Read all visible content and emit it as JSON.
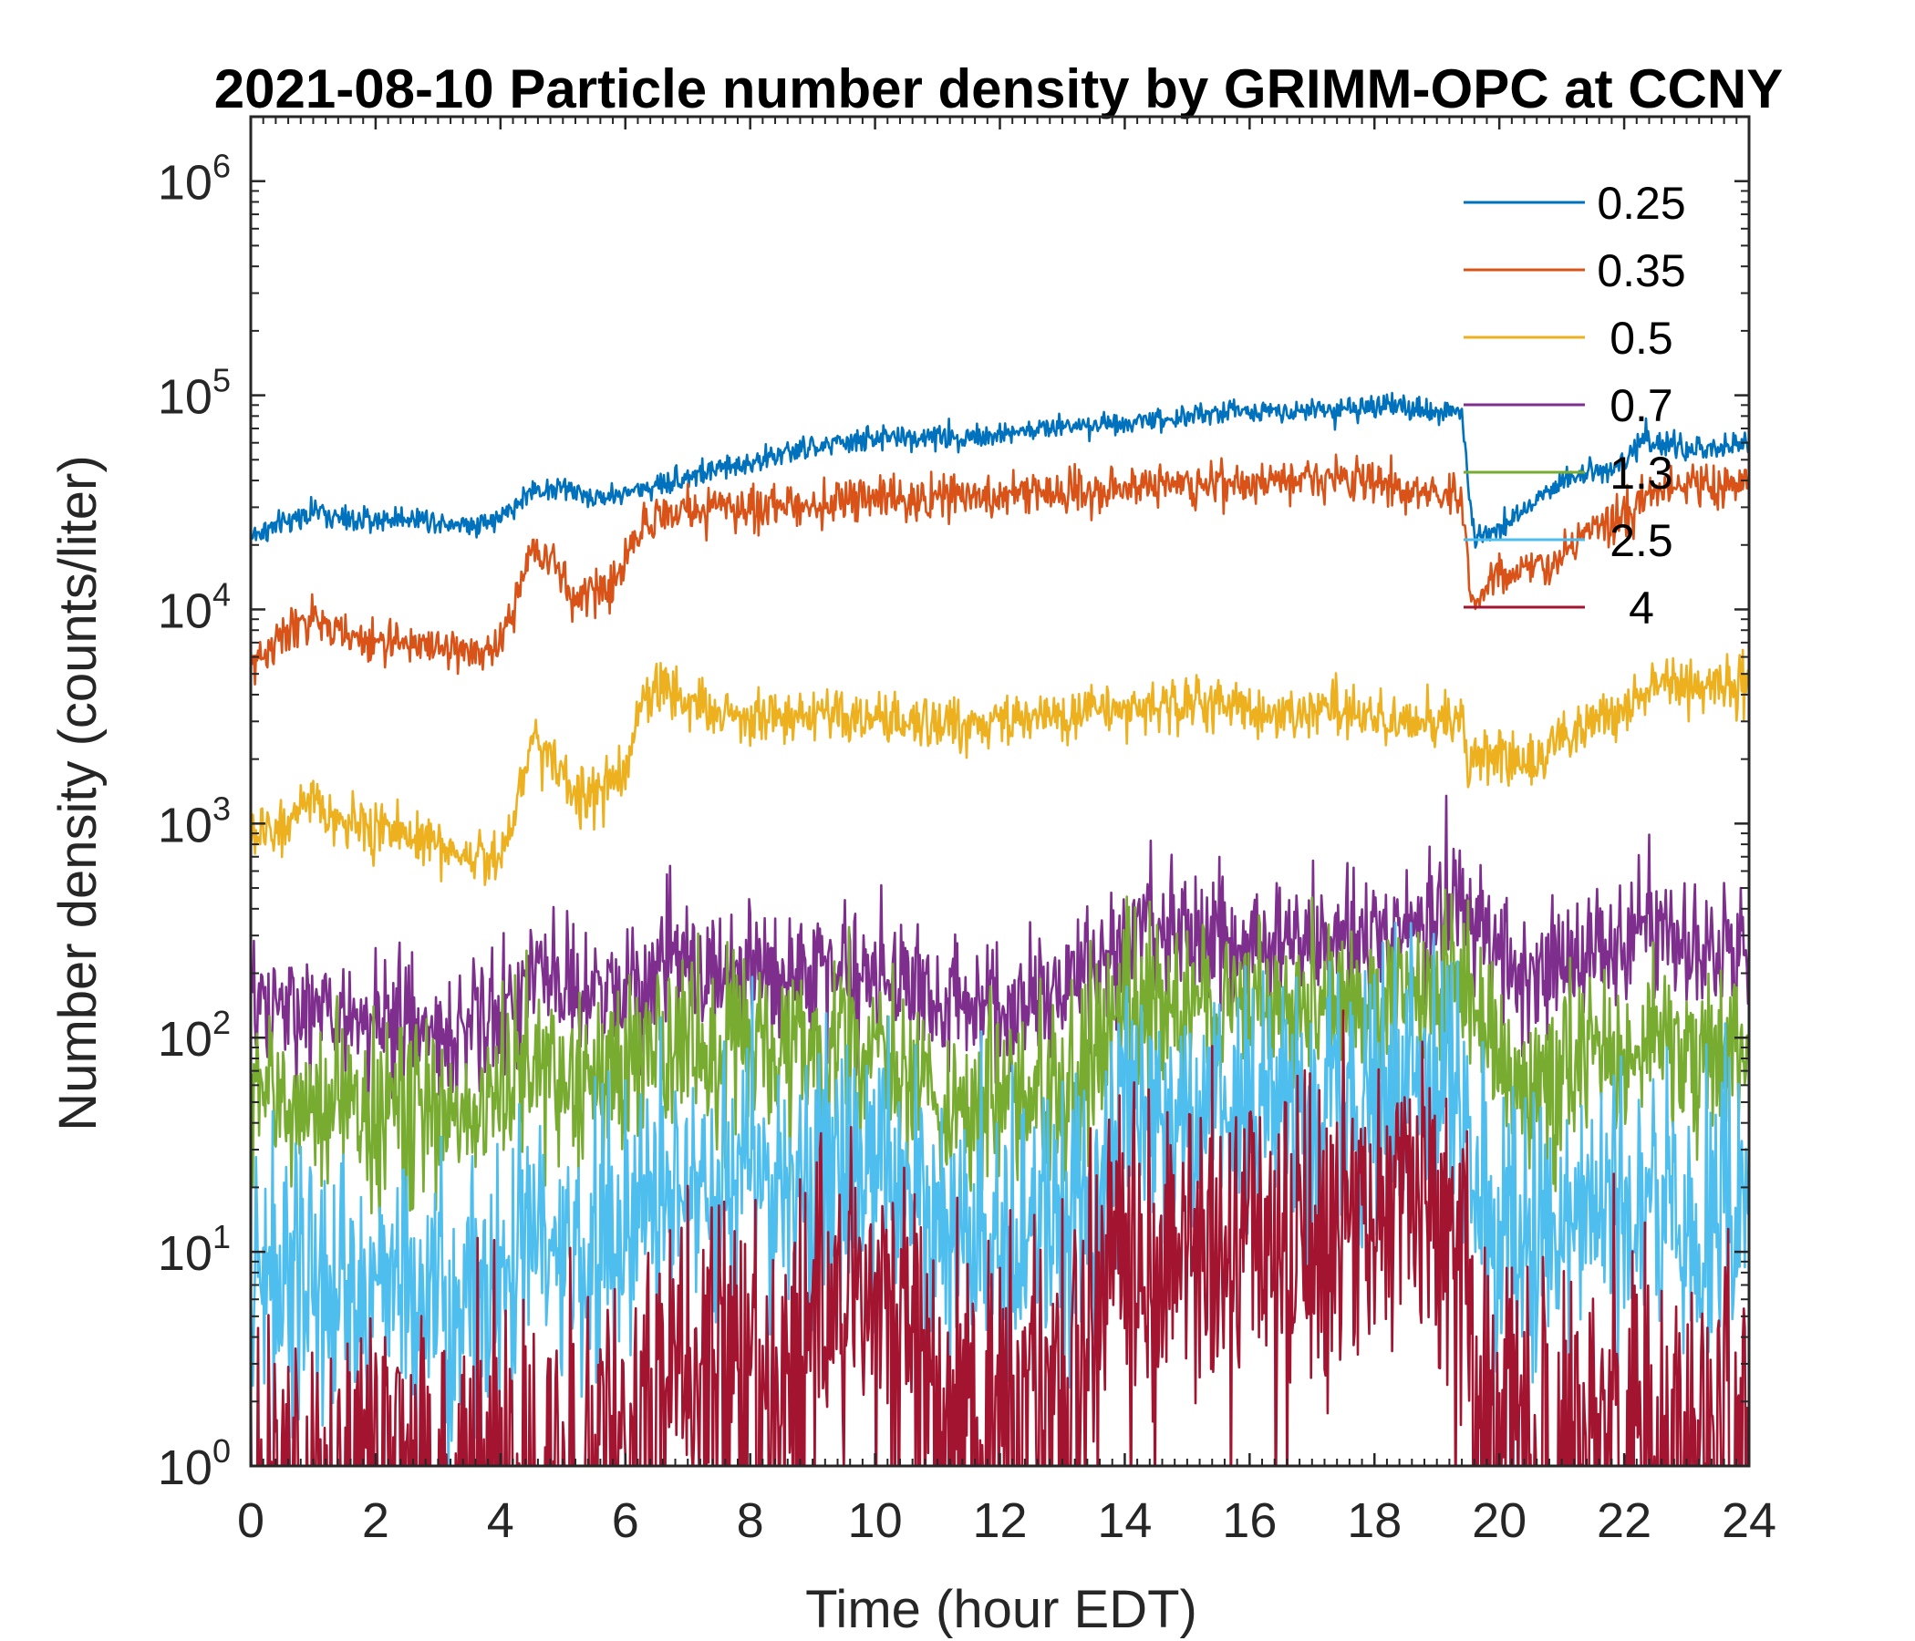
{
  "chart_data": {
    "type": "line",
    "title": "2021-08-10 Particle number density by GRIMM-OPC at CCNY",
    "xlabel": "Time (hour EDT)",
    "ylabel": "Number density (counts/liter)",
    "xlim": [
      0,
      24
    ],
    "ylim": [
      1,
      2000000
    ],
    "yscale": "log",
    "xticks": [
      0,
      2,
      4,
      6,
      8,
      10,
      12,
      14,
      16,
      18,
      20,
      22,
      24
    ],
    "xtick_labels": [
      "0",
      "2",
      "4",
      "6",
      "8",
      "10",
      "12",
      "14",
      "16",
      "18",
      "20",
      "22",
      "24"
    ],
    "yticks": [
      1,
      10,
      100,
      1000,
      10000,
      100000,
      1000000
    ],
    "ytick_labels": [
      {
        "base": "10",
        "exp": "0"
      },
      {
        "base": "10",
        "exp": "1"
      },
      {
        "base": "10",
        "exp": "2"
      },
      {
        "base": "10",
        "exp": "3"
      },
      {
        "base": "10",
        "exp": "4"
      },
      {
        "base": "10",
        "exp": "5"
      },
      {
        "base": "10",
        "exp": "6"
      }
    ],
    "grid": false,
    "legend_position": "top-right",
    "series": [
      {
        "name": "0.25",
        "color": "#0072BD",
        "noise": 0.04,
        "x": [
          0,
          0.5,
          1,
          1.5,
          2,
          2.5,
          3,
          3.5,
          4,
          4.5,
          5,
          5.5,
          6,
          6.5,
          7,
          7.5,
          8,
          9,
          10,
          11,
          12,
          13,
          14,
          15,
          16,
          17,
          18,
          19,
          19.4,
          19.5,
          19.6,
          20,
          20.5,
          21,
          21.5,
          22,
          22.3,
          22.5,
          23,
          23.5,
          24
        ],
        "y": [
          22000,
          25000,
          29000,
          26000,
          26000,
          27000,
          26000,
          25000,
          26500,
          36000,
          37000,
          33000,
          35000,
          38000,
          42000,
          45000,
          49000,
          57000,
          63000,
          64000,
          65000,
          72000,
          75000,
          80000,
          85000,
          86000,
          87000,
          85000,
          84000,
          40000,
          21000,
          25000,
          30000,
          40000,
          45000,
          47000,
          65000,
          60000,
          55000,
          56000,
          60000
        ]
      },
      {
        "name": "0.35",
        "color": "#D95319",
        "noise": 0.07,
        "x": [
          0,
          0.5,
          1,
          1.5,
          2,
          2.5,
          3,
          3.5,
          4,
          4.2,
          4.5,
          4.8,
          5.2,
          5.5,
          5.8,
          6,
          6.3,
          6.7,
          7,
          8,
          9,
          10,
          11,
          12,
          13,
          14,
          15,
          16,
          17,
          18,
          19,
          19.4,
          19.5,
          19.6,
          20,
          20.5,
          21,
          21.5,
          22,
          22.5,
          23,
          24
        ],
        "y": [
          5500,
          7500,
          9000,
          7500,
          7000,
          7000,
          6800,
          6200,
          6500,
          10000,
          20000,
          17000,
          11000,
          12000,
          13000,
          17000,
          26000,
          28000,
          29000,
          30000,
          31000,
          33000,
          33000,
          34000,
          36000,
          37000,
          39000,
          39000,
          41000,
          40000,
          35000,
          33000,
          15000,
          11000,
          15000,
          15000,
          18000,
          24000,
          26000,
          35000,
          37000,
          39000
        ]
      },
      {
        "name": "0.5",
        "color": "#EDB120",
        "noise": 0.09,
        "x": [
          0,
          0.5,
          1,
          1.5,
          2,
          2.5,
          3,
          3.5,
          4,
          4.2,
          4.5,
          4.8,
          5.2,
          5.5,
          5.8,
          6,
          6.3,
          6.7,
          7,
          7.5,
          8,
          9,
          10,
          11,
          12,
          13,
          14,
          15,
          16,
          17,
          18,
          19,
          19.4,
          19.5,
          19.6,
          20,
          20.5,
          21,
          21.5,
          22,
          22.5,
          23,
          24
        ],
        "y": [
          850,
          1000,
          1200,
          1000,
          950,
          900,
          800,
          700,
          700,
          1100,
          2500,
          2200,
          1300,
          1400,
          1500,
          1700,
          4000,
          4500,
          3700,
          3300,
          3200,
          3100,
          3000,
          2900,
          3000,
          3200,
          3400,
          3700,
          3400,
          3300,
          3200,
          3000,
          2900,
          1700,
          2200,
          2000,
          1900,
          2400,
          3000,
          3500,
          4500,
          4500,
          4500
        ]
      },
      {
        "name": "0.7",
        "color": "#7E2F8E",
        "noise": 0.22,
        "x": [
          0,
          1,
          2,
          3,
          3.5,
          4,
          4.5,
          5,
          5.5,
          6,
          6.5,
          7,
          8,
          9,
          10,
          10.5,
          11,
          12,
          12.5,
          13,
          13.5,
          14,
          15,
          16,
          17,
          18,
          19,
          19.5,
          19.6,
          20,
          20.5,
          21,
          22,
          22.5,
          23,
          24
        ],
        "y": [
          130,
          130,
          120,
          110,
          110,
          130,
          200,
          160,
          150,
          170,
          210,
          210,
          200,
          200,
          200,
          200,
          140,
          150,
          140,
          160,
          200,
          300,
          300,
          280,
          280,
          300,
          380,
          430,
          330,
          260,
          170,
          240,
          300,
          320,
          260,
          230
        ]
      },
      {
        "name": "1.3",
        "color": "#77AC30",
        "noise": 0.3,
        "x": [
          0,
          1,
          2,
          3,
          3.5,
          4,
          4.5,
          5,
          5.5,
          6,
          6.5,
          7,
          8,
          9,
          10,
          10.5,
          11,
          12,
          12.5,
          13,
          13.5,
          14,
          15,
          16,
          17,
          18,
          19,
          19.5,
          19.6,
          20,
          20.5,
          21,
          22,
          22.5,
          23,
          24
        ],
        "y": [
          50,
          50,
          45,
          45,
          42,
          55,
          80,
          65,
          60,
          70,
          90,
          95,
          90,
          85,
          85,
          80,
          45,
          50,
          48,
          55,
          80,
          150,
          140,
          140,
          140,
          150,
          180,
          190,
          120,
          85,
          55,
          75,
          90,
          100,
          80,
          75
        ]
      },
      {
        "name": "2.5",
        "color": "#4DBEEE",
        "noise": 0.45,
        "x": [
          0,
          1,
          2,
          3,
          3.5,
          4,
          4.5,
          5,
          5.5,
          6,
          6.5,
          7,
          8,
          9,
          10,
          10.5,
          11,
          12,
          12.5,
          13,
          13.5,
          14,
          15,
          16,
          17,
          18,
          19,
          19.5,
          19.6,
          20,
          20.5,
          21,
          22,
          22.5,
          23,
          24
        ],
        "y": [
          7,
          7,
          7,
          7,
          6,
          8,
          10,
          9,
          9,
          12,
          18,
          20,
          20,
          20,
          25,
          25,
          12,
          12,
          12,
          14,
          20,
          45,
          45,
          50,
          45,
          50,
          60,
          55,
          18,
          12,
          10,
          13,
          14,
          15,
          14,
          18
        ]
      },
      {
        "name": "4",
        "color": "#A2142F",
        "noise": 0.55,
        "zeroProb": 0.45,
        "x": [
          0,
          1,
          2,
          3,
          4,
          5,
          6,
          6.5,
          7,
          8,
          9,
          10,
          10.5,
          11,
          12,
          12.5,
          13,
          13.5,
          14,
          15,
          16,
          17,
          18,
          19,
          19.5,
          19.6,
          20,
          21,
          22,
          23,
          24
        ],
        "y": [
          1,
          1,
          1,
          1,
          1,
          1.2,
          1.5,
          2,
          2.5,
          3.5,
          4,
          5,
          4,
          2,
          2,
          2,
          3,
          5,
          10,
          11,
          12,
          12,
          13,
          15,
          12,
          2,
          1.2,
          1.2,
          1.5,
          1.5,
          1.8
        ]
      }
    ]
  }
}
